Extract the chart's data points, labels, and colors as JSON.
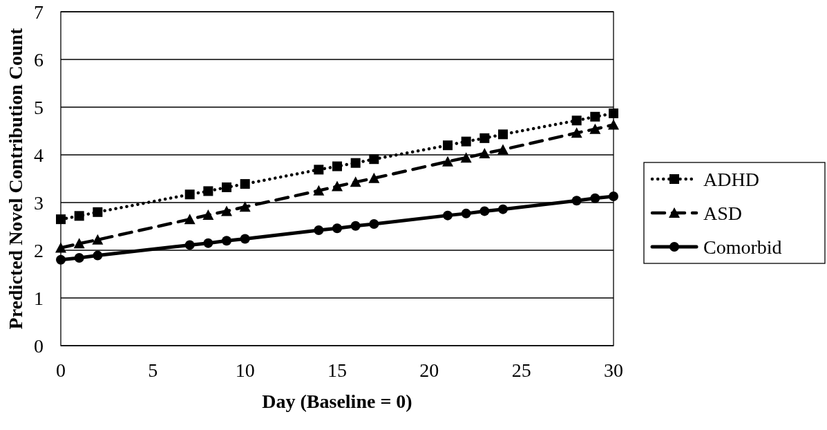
{
  "chart_data": {
    "type": "line",
    "xlabel": "Day (Baseline = 0)",
    "ylabel": "Predicted Novel Contribution Count",
    "x": [
      0,
      1,
      2,
      7,
      8,
      9,
      10,
      14,
      15,
      16,
      17,
      21,
      22,
      23,
      24,
      28,
      29,
      30
    ],
    "xlim": [
      0,
      30
    ],
    "xticks": [
      0,
      5,
      10,
      15,
      20,
      25,
      30
    ],
    "ylim": [
      0,
      7
    ],
    "yticks": [
      0,
      1,
      2,
      3,
      4,
      5,
      6,
      7
    ],
    "grid": "y",
    "legend": "right",
    "series": [
      {
        "name": "ADHD",
        "color": "#000000",
        "line_style": "dotted",
        "marker": "square",
        "values": [
          2.65,
          2.72,
          2.8,
          3.17,
          3.24,
          3.32,
          3.39,
          3.69,
          3.76,
          3.83,
          3.91,
          4.2,
          4.28,
          4.35,
          4.43,
          4.72,
          4.8,
          4.87
        ]
      },
      {
        "name": "ASD",
        "color": "#000000",
        "line_style": "dashed",
        "marker": "triangle",
        "values": [
          2.05,
          2.14,
          2.22,
          2.65,
          2.74,
          2.82,
          2.91,
          3.25,
          3.34,
          3.43,
          3.51,
          3.86,
          3.94,
          4.03,
          4.11,
          4.46,
          4.54,
          4.63
        ]
      },
      {
        "name": "Comorbid",
        "color": "#000000",
        "line_style": "solid",
        "marker": "circle",
        "values": [
          1.8,
          1.84,
          1.89,
          2.11,
          2.15,
          2.2,
          2.24,
          2.42,
          2.46,
          2.51,
          2.55,
          2.73,
          2.77,
          2.82,
          2.86,
          3.04,
          3.09,
          3.13
        ]
      }
    ]
  }
}
